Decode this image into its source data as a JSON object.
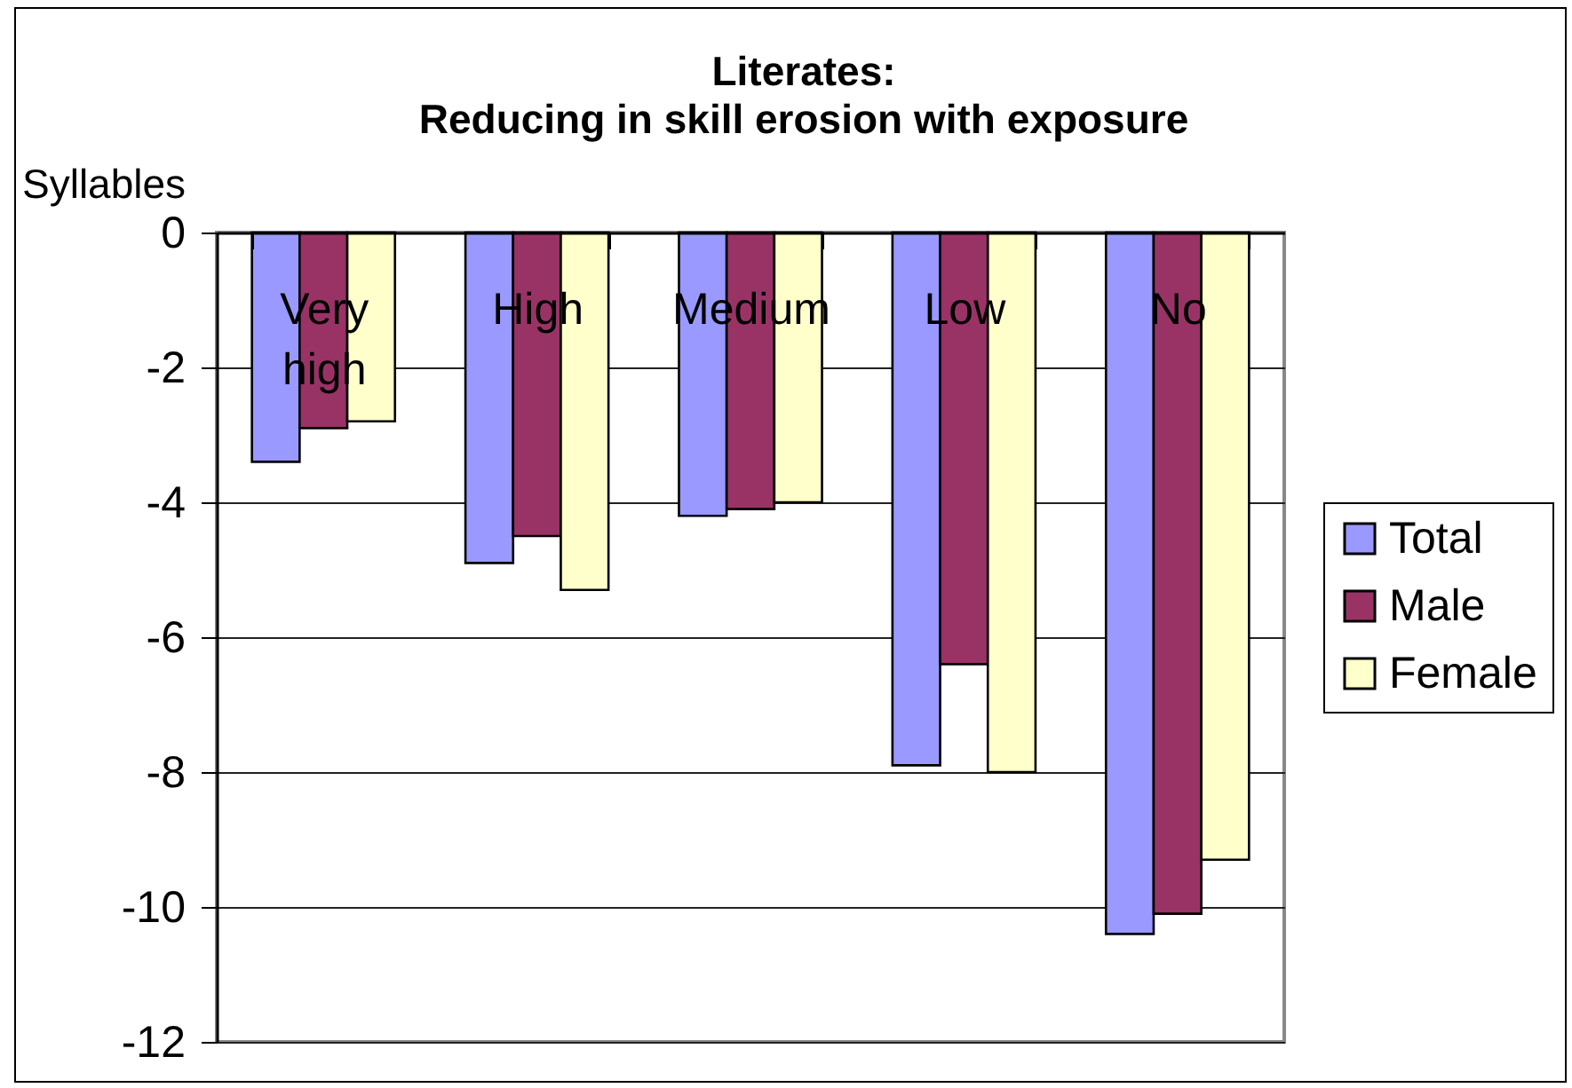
{
  "chart_data": {
    "type": "bar",
    "title": "Literates:\nReducing in skill erosion with exposure",
    "ylabel": "Syllables",
    "categories": [
      "Very high",
      "High",
      "Medium",
      "Low",
      "No"
    ],
    "series": [
      {
        "name": "Total",
        "color": "#9999ff",
        "values": [
          -3.4,
          -4.9,
          -4.2,
          -7.9,
          -10.4
        ]
      },
      {
        "name": "Male",
        "color": "#993366",
        "values": [
          -2.9,
          -4.5,
          -4.1,
          -6.4,
          -10.1
        ]
      },
      {
        "name": "Female",
        "color": "#ffffcc",
        "values": [
          -2.8,
          -5.3,
          -4.0,
          -8.0,
          -9.3
        ]
      }
    ],
    "ylim": [
      -12,
      0
    ],
    "yticks": [
      0,
      -2,
      -4,
      -6,
      -8,
      -10,
      -12
    ],
    "grid": "y",
    "legend": "right"
  }
}
